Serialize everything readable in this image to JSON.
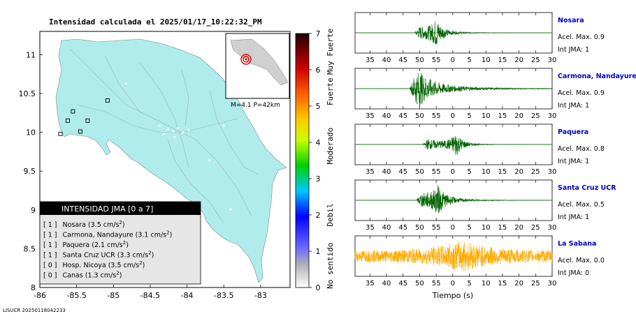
{
  "header": {
    "title": "Intensidad calculada el 2025/01/17_10:22:32_PM"
  },
  "footer": {
    "id": "LISUCR 20250118042233"
  },
  "colors": {
    "land": "#b0ecec",
    "sea": "#ffffff",
    "stations": "#000000",
    "trace_green": "#006400",
    "trace_orange": "#ffaa00",
    "station_name": "#0000c8",
    "legend_header_bg": "#000000",
    "legend_bg": "#e6e6e6",
    "epicenter": "#e00000"
  },
  "map": {
    "x_ticks": [
      "-86",
      "-85.5",
      "-85",
      "-84.5",
      "-84",
      "-83.5",
      "-83"
    ],
    "y_ticks": [
      "11",
      "10.5",
      "10",
      "9.5",
      "9",
      "8.5",
      "8"
    ],
    "inset_label": "M=4.1 P=42km",
    "stations": [
      {
        "lon": -85.62,
        "lat": 10.15
      },
      {
        "lon": -85.55,
        "lat": 10.27
      },
      {
        "lon": -85.72,
        "lat": 9.98
      },
      {
        "lon": -85.35,
        "lat": 10.15
      },
      {
        "lon": -85.45,
        "lat": 10.01
      },
      {
        "lon": -85.08,
        "lat": 10.41
      }
    ]
  },
  "legend": {
    "title": "INTENSIDAD JMA [0 a 7]",
    "rows": [
      {
        "code": "[ 1 ]",
        "name": "Nosara (3.5 cm/s",
        "sup": "2",
        "tail": ")"
      },
      {
        "code": "[ 1 ]",
        "name": "Carmona, Nandayure (3.1 cm/s",
        "sup": "2",
        "tail": ")"
      },
      {
        "code": "[ 1 ]",
        "name": "Paquera (2.1 cm/s",
        "sup": "2",
        "tail": ")"
      },
      {
        "code": "[ 1 ]",
        "name": "Santa Cruz UCR (3.3 cm/s",
        "sup": "2",
        "tail": ")"
      },
      {
        "code": "[ 0 ]",
        "name": "Hosp. Nicoya (3.5 cm/s",
        "sup": "2",
        "tail": ")"
      },
      {
        "code": "[ 0 ]",
        "name": "Canas (1.3 cm/s",
        "sup": "2",
        "tail": ")"
      }
    ]
  },
  "colorbar": {
    "ticks": [
      "0",
      "1",
      "2",
      "3",
      "4",
      "5",
      "6",
      "7"
    ],
    "labels": [
      "No sentido",
      "Debil",
      "Moderado",
      "Fuerte",
      "Muy Fuerte"
    ],
    "min": 0,
    "max": 7
  },
  "chart_data": {
    "type": "line",
    "xlabel": "Tiempo (s)",
    "x_ticks": [
      "35",
      "40",
      "45",
      "50",
      "55",
      "0",
      "5",
      "10",
      "15",
      "20",
      "25",
      "30"
    ],
    "series": [
      {
        "name": "Nosara",
        "accel": "Acel. Max. 0.9",
        "jma": "Int JMA: 1",
        "color": "#006400",
        "onset": 48.5,
        "peak": 55,
        "amp": 0.9,
        "decay": 4
      },
      {
        "name": "Carmona, Nandayure",
        "accel": "Acel. Max. 0.9",
        "jma": "Int JMA: 1",
        "color": "#006400",
        "onset": 47,
        "peak": 50,
        "amp": 0.9,
        "decay": 8
      },
      {
        "name": "Paquera",
        "accel": "Acel. Max. 0.8",
        "jma": "Int JMA: 1",
        "color": "#006400",
        "onset": 51,
        "peak": 61,
        "amp": 0.85,
        "decay": 4
      },
      {
        "name": "Santa Cruz UCR",
        "accel": "Acel. Max. 0.5",
        "jma": "Int JMA: 1",
        "color": "#006400",
        "onset": 49,
        "peak": 55.5,
        "amp": 0.9,
        "decay": 5
      },
      {
        "name": "La Sabana",
        "accel": "Acel. Max. 0.0",
        "jma": "Int JMA: 0",
        "color": "#ffaa00",
        "onset": 30,
        "peak": 63,
        "amp": 0.9,
        "decay": 30
      }
    ]
  }
}
